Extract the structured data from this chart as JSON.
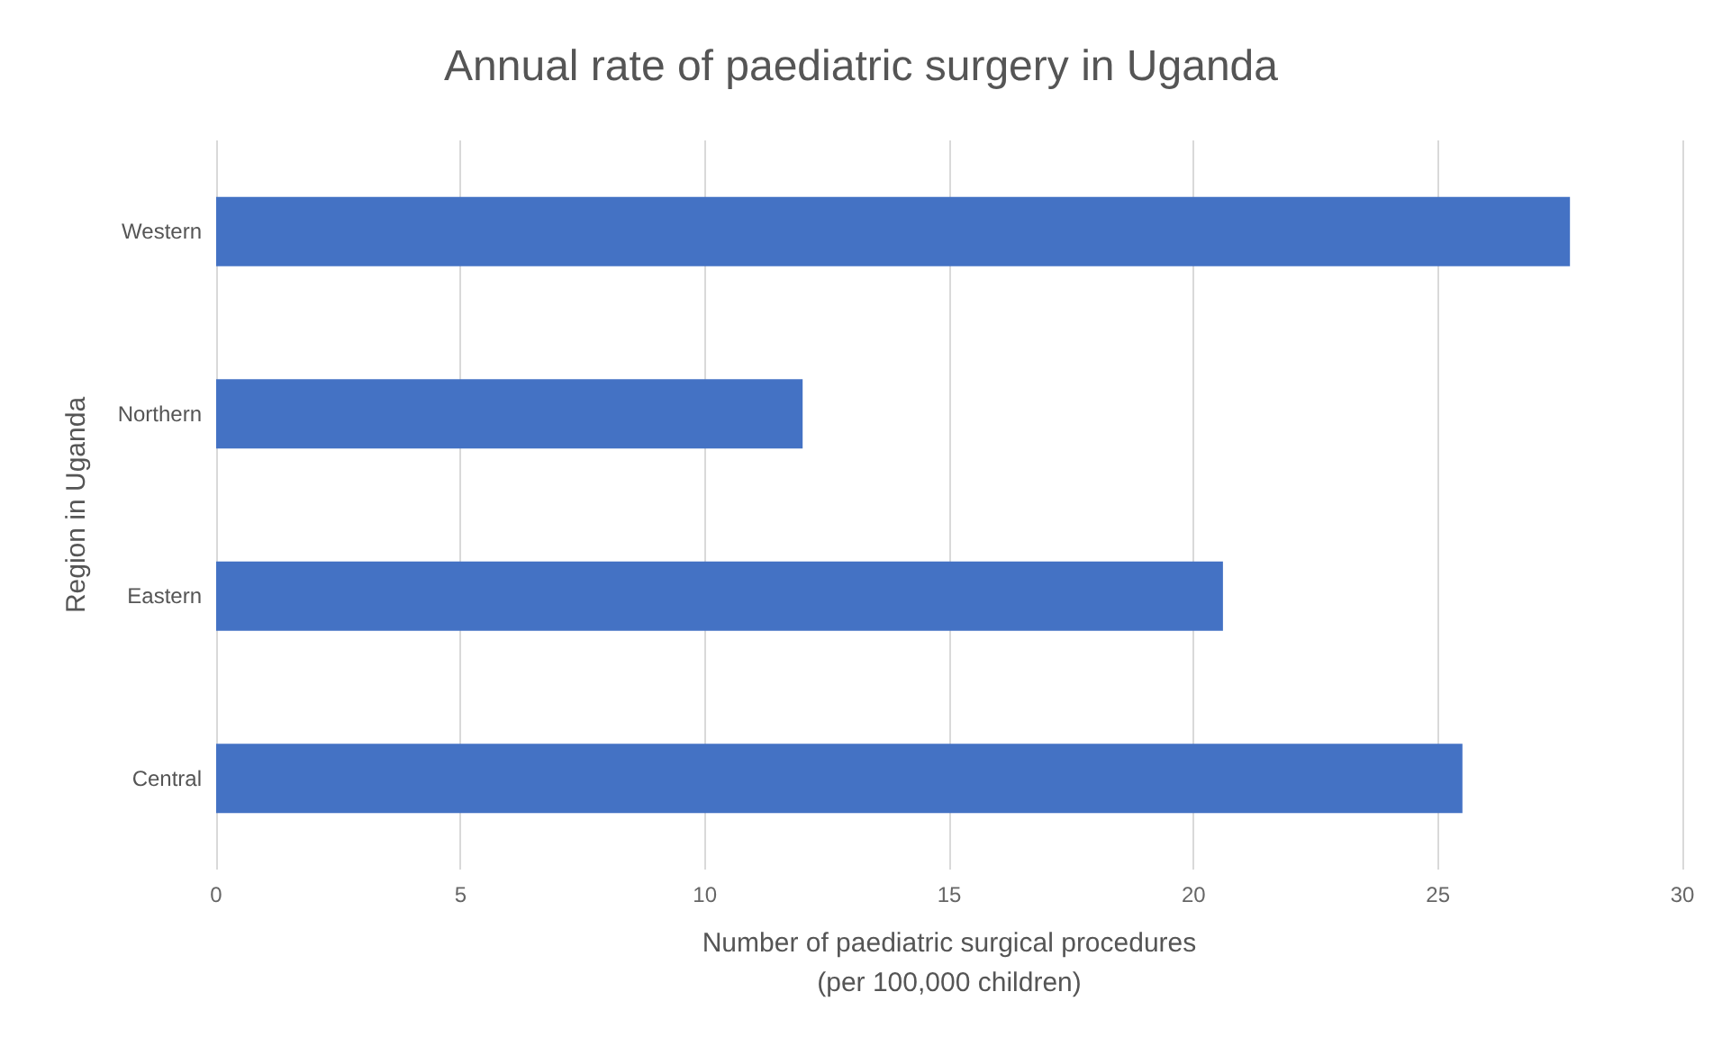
{
  "chart_data": {
    "type": "bar",
    "title": "Annual rate of paediatric surgery in Uganda",
    "xlabel": "Number of paediatric surgical procedures\n(per 100,000 children)",
    "ylabel": "Region in Uganda",
    "orientation": "horizontal",
    "categories": [
      "Western",
      "Northern",
      "Eastern",
      "Central"
    ],
    "values": [
      27.7,
      12.0,
      20.6,
      25.5
    ],
    "color": "#4472c4",
    "xlim": [
      0,
      30
    ],
    "xticks": [
      0,
      5,
      10,
      15,
      20,
      25,
      30
    ],
    "grid": "x"
  }
}
